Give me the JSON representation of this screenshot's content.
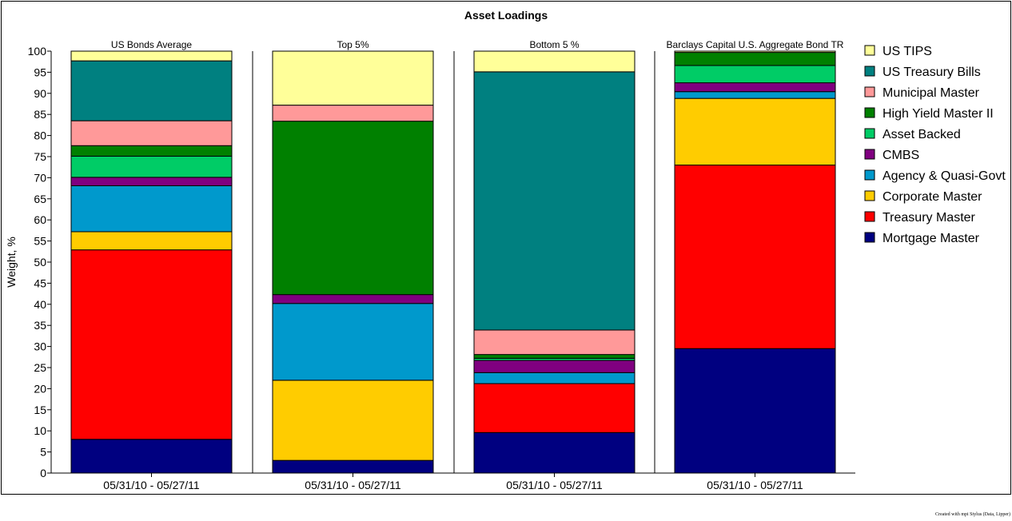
{
  "chart_data": {
    "type": "bar",
    "stacked": true,
    "title": "Asset Loadings",
    "ylabel": "Weight, %",
    "ylim": [
      0,
      100
    ],
    "yticks": [
      0,
      5,
      10,
      15,
      20,
      25,
      30,
      35,
      40,
      45,
      50,
      55,
      60,
      65,
      70,
      75,
      80,
      85,
      90,
      95,
      100
    ],
    "grid": false,
    "legend_position": "right",
    "panels": [
      {
        "title": "US Bonds Average",
        "category": "05/31/10 - 05/27/11",
        "values": {
          "Mortgage Master": 8.0,
          "Treasury Master": 44.9,
          "Corporate Master": 4.3,
          "Agency & Quasi-Govt": 10.9,
          "CMBS": 2.0,
          "Asset Backed": 5.0,
          "High Yield Master II": 2.5,
          "Municipal Master": 5.9,
          "US Treasury Bills": 14.2,
          "US TIPS": 2.3
        }
      },
      {
        "title": "Top 5%",
        "category": "05/31/10 - 05/27/11",
        "values": {
          "Mortgage Master": 3.0,
          "Treasury Master": 0.0,
          "Corporate Master": 19.0,
          "Agency & Quasi-Govt": 18.2,
          "CMBS": 2.1,
          "Asset Backed": 0.0,
          "High Yield Master II": 41.1,
          "Municipal Master": 3.8,
          "US Treasury Bills": 0.0,
          "US TIPS": 12.8
        }
      },
      {
        "title": "Bottom 5 %",
        "category": "05/31/10 - 05/27/11",
        "values": {
          "Mortgage Master": 9.6,
          "Treasury Master": 11.6,
          "Corporate Master": 0.0,
          "Agency & Quasi-Govt": 2.6,
          "CMBS": 2.9,
          "Asset Backed": 0.5,
          "High Yield Master II": 0.9,
          "Municipal Master": 5.8,
          "US Treasury Bills": 61.2,
          "US TIPS": 4.9
        }
      },
      {
        "title": "Barclays Capital U.S. Aggregate Bond TR",
        "category": "05/31/10 - 05/27/11",
        "values": {
          "Mortgage Master": 29.5,
          "Treasury Master": 43.5,
          "Corporate Master": 15.8,
          "Agency & Quasi-Govt": 1.6,
          "CMBS": 2.1,
          "Asset Backed": 4.1,
          "High Yield Master II": 3.1,
          "Municipal Master": 0.0,
          "US Treasury Bills": 0.0,
          "US TIPS": 0.3
        }
      }
    ],
    "series": [
      {
        "name": "Mortgage Master",
        "color": "#000080"
      },
      {
        "name": "Treasury Master",
        "color": "#ff0000"
      },
      {
        "name": "Corporate Master",
        "color": "#ffcc00"
      },
      {
        "name": "Agency & Quasi-Govt",
        "color": "#0099cc"
      },
      {
        "name": "CMBS",
        "color": "#800080"
      },
      {
        "name": "Asset Backed",
        "color": "#00cc66"
      },
      {
        "name": "High Yield Master II",
        "color": "#008000"
      },
      {
        "name": "Municipal Master",
        "color": "#ff9999"
      },
      {
        "name": "US Treasury Bills",
        "color": "#008080"
      },
      {
        "name": "US TIPS",
        "color": "#ffff99"
      }
    ],
    "legend_order": [
      "US TIPS",
      "US Treasury Bills",
      "Municipal Master",
      "High Yield Master II",
      "Asset Backed",
      "CMBS",
      "Agency & Quasi-Govt",
      "Corporate Master",
      "Treasury Master",
      "Mortgage Master"
    ]
  },
  "footer": {
    "credit": "Created with mpi Stylus (Data, Lipper)"
  }
}
